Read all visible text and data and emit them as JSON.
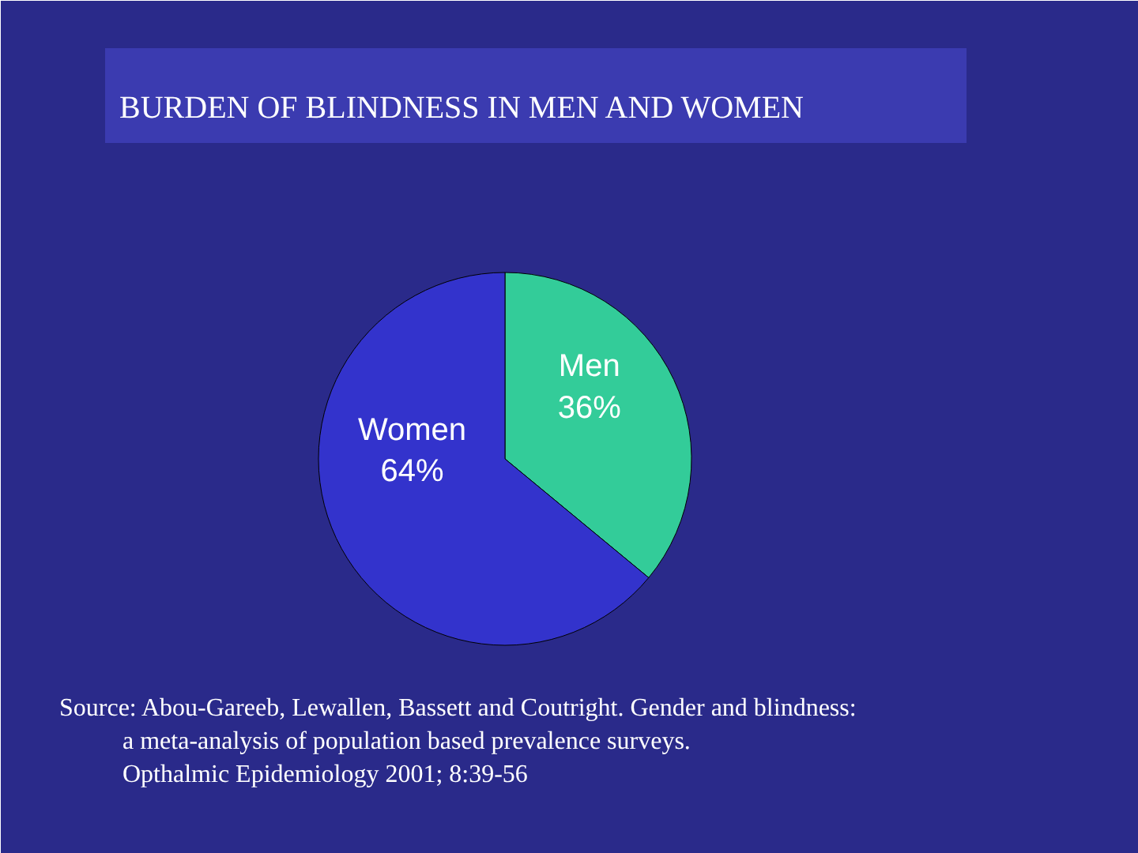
{
  "chart_data": {
    "type": "pie",
    "title": "BURDEN OF BLINDNESS IN MEN AND WOMEN",
    "categories": [
      "Men",
      "Women"
    ],
    "values": [
      36,
      64
    ],
    "colors": [
      "#33cc99",
      "#3333cc"
    ],
    "value_labels": [
      "36%",
      "64%"
    ],
    "annotations": [
      "Source: Abou-Gareeb, Lewallen, Bassett and Coutright. Gender and blindness:\na meta-analysis of population based prevalence surveys.\nOpthalmic Epidemiology 2001; 8:39-56"
    ]
  }
}
